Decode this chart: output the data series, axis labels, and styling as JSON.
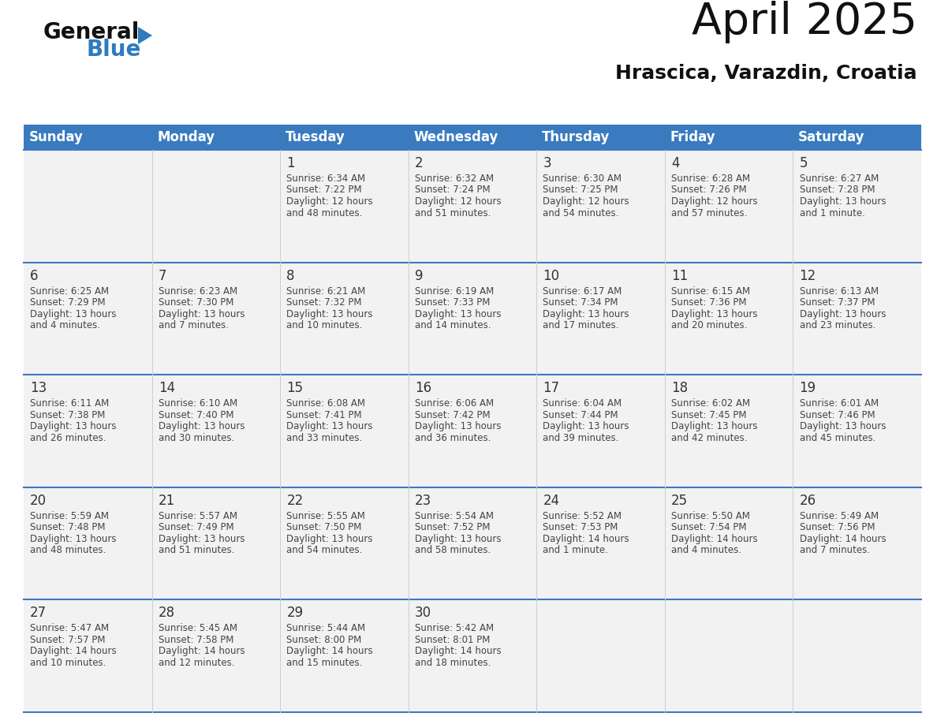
{
  "title": "April 2025",
  "subtitle": "Hrascica, Varazdin, Croatia",
  "days_of_week": [
    "Sunday",
    "Monday",
    "Tuesday",
    "Wednesday",
    "Thursday",
    "Friday",
    "Saturday"
  ],
  "header_bg": "#3a7bbf",
  "header_text": "#ffffff",
  "row_bg_light": "#f2f2f2",
  "row_bg_white": "#ffffff",
  "text_color": "#444444",
  "number_color": "#333333",
  "weeks": [
    {
      "days": [
        {
          "date": null,
          "info": null
        },
        {
          "date": null,
          "info": null
        },
        {
          "date": "1",
          "info": "Sunrise: 6:34 AM\nSunset: 7:22 PM\nDaylight: 12 hours\nand 48 minutes."
        },
        {
          "date": "2",
          "info": "Sunrise: 6:32 AM\nSunset: 7:24 PM\nDaylight: 12 hours\nand 51 minutes."
        },
        {
          "date": "3",
          "info": "Sunrise: 6:30 AM\nSunset: 7:25 PM\nDaylight: 12 hours\nand 54 minutes."
        },
        {
          "date": "4",
          "info": "Sunrise: 6:28 AM\nSunset: 7:26 PM\nDaylight: 12 hours\nand 57 minutes."
        },
        {
          "date": "5",
          "info": "Sunrise: 6:27 AM\nSunset: 7:28 PM\nDaylight: 13 hours\nand 1 minute."
        }
      ]
    },
    {
      "days": [
        {
          "date": "6",
          "info": "Sunrise: 6:25 AM\nSunset: 7:29 PM\nDaylight: 13 hours\nand 4 minutes."
        },
        {
          "date": "7",
          "info": "Sunrise: 6:23 AM\nSunset: 7:30 PM\nDaylight: 13 hours\nand 7 minutes."
        },
        {
          "date": "8",
          "info": "Sunrise: 6:21 AM\nSunset: 7:32 PM\nDaylight: 13 hours\nand 10 minutes."
        },
        {
          "date": "9",
          "info": "Sunrise: 6:19 AM\nSunset: 7:33 PM\nDaylight: 13 hours\nand 14 minutes."
        },
        {
          "date": "10",
          "info": "Sunrise: 6:17 AM\nSunset: 7:34 PM\nDaylight: 13 hours\nand 17 minutes."
        },
        {
          "date": "11",
          "info": "Sunrise: 6:15 AM\nSunset: 7:36 PM\nDaylight: 13 hours\nand 20 minutes."
        },
        {
          "date": "12",
          "info": "Sunrise: 6:13 AM\nSunset: 7:37 PM\nDaylight: 13 hours\nand 23 minutes."
        }
      ]
    },
    {
      "days": [
        {
          "date": "13",
          "info": "Sunrise: 6:11 AM\nSunset: 7:38 PM\nDaylight: 13 hours\nand 26 minutes."
        },
        {
          "date": "14",
          "info": "Sunrise: 6:10 AM\nSunset: 7:40 PM\nDaylight: 13 hours\nand 30 minutes."
        },
        {
          "date": "15",
          "info": "Sunrise: 6:08 AM\nSunset: 7:41 PM\nDaylight: 13 hours\nand 33 minutes."
        },
        {
          "date": "16",
          "info": "Sunrise: 6:06 AM\nSunset: 7:42 PM\nDaylight: 13 hours\nand 36 minutes."
        },
        {
          "date": "17",
          "info": "Sunrise: 6:04 AM\nSunset: 7:44 PM\nDaylight: 13 hours\nand 39 minutes."
        },
        {
          "date": "18",
          "info": "Sunrise: 6:02 AM\nSunset: 7:45 PM\nDaylight: 13 hours\nand 42 minutes."
        },
        {
          "date": "19",
          "info": "Sunrise: 6:01 AM\nSunset: 7:46 PM\nDaylight: 13 hours\nand 45 minutes."
        }
      ]
    },
    {
      "days": [
        {
          "date": "20",
          "info": "Sunrise: 5:59 AM\nSunset: 7:48 PM\nDaylight: 13 hours\nand 48 minutes."
        },
        {
          "date": "21",
          "info": "Sunrise: 5:57 AM\nSunset: 7:49 PM\nDaylight: 13 hours\nand 51 minutes."
        },
        {
          "date": "22",
          "info": "Sunrise: 5:55 AM\nSunset: 7:50 PM\nDaylight: 13 hours\nand 54 minutes."
        },
        {
          "date": "23",
          "info": "Sunrise: 5:54 AM\nSunset: 7:52 PM\nDaylight: 13 hours\nand 58 minutes."
        },
        {
          "date": "24",
          "info": "Sunrise: 5:52 AM\nSunset: 7:53 PM\nDaylight: 14 hours\nand 1 minute."
        },
        {
          "date": "25",
          "info": "Sunrise: 5:50 AM\nSunset: 7:54 PM\nDaylight: 14 hours\nand 4 minutes."
        },
        {
          "date": "26",
          "info": "Sunrise: 5:49 AM\nSunset: 7:56 PM\nDaylight: 14 hours\nand 7 minutes."
        }
      ]
    },
    {
      "days": [
        {
          "date": "27",
          "info": "Sunrise: 5:47 AM\nSunset: 7:57 PM\nDaylight: 14 hours\nand 10 minutes."
        },
        {
          "date": "28",
          "info": "Sunrise: 5:45 AM\nSunset: 7:58 PM\nDaylight: 14 hours\nand 12 minutes."
        },
        {
          "date": "29",
          "info": "Sunrise: 5:44 AM\nSunset: 8:00 PM\nDaylight: 14 hours\nand 15 minutes."
        },
        {
          "date": "30",
          "info": "Sunrise: 5:42 AM\nSunset: 8:01 PM\nDaylight: 14 hours\nand 18 minutes."
        },
        {
          "date": null,
          "info": null
        },
        {
          "date": null,
          "info": null
        },
        {
          "date": null,
          "info": null
        }
      ]
    }
  ],
  "logo_text_general": "General",
  "logo_text_blue": "Blue",
  "logo_color_general": "#111111",
  "logo_color_blue": "#2e7bbf",
  "logo_triangle_color": "#2e7bbf",
  "title_fontsize": 40,
  "subtitle_fontsize": 18,
  "header_fontsize": 12,
  "date_fontsize": 12,
  "info_fontsize": 8.5
}
